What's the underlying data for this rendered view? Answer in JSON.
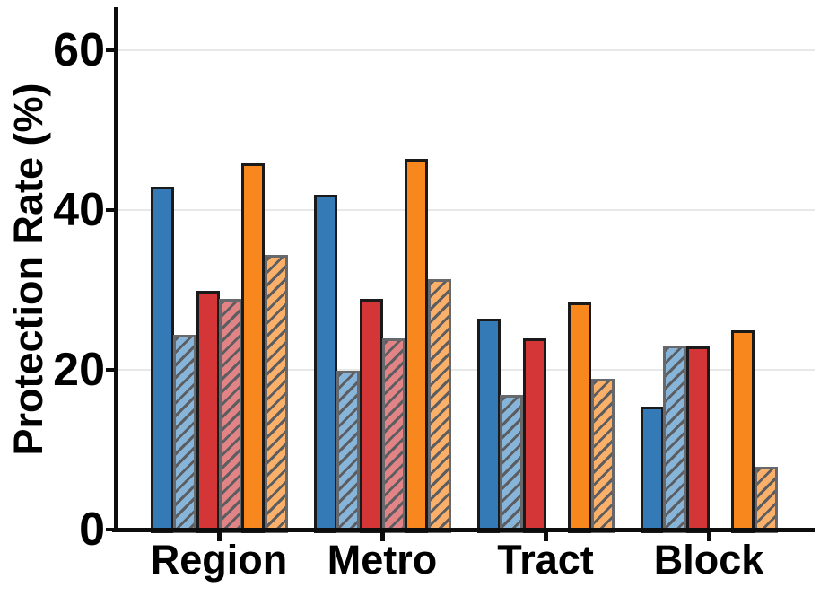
{
  "chart_data": {
    "type": "bar",
    "title": "",
    "xlabel": "",
    "ylabel": "Protection Rate (%)",
    "categories": [
      "Region",
      "Metro",
      "Tract",
      "Block"
    ],
    "yticks": [
      0,
      20,
      40,
      60
    ],
    "ylim": [
      0,
      65
    ],
    "grid": "horizontal",
    "legend": "none",
    "series": [
      {
        "name": "blue-solid",
        "fill": "#337ab7",
        "edge": "#1a1a1a",
        "hatch": false,
        "values": [
          43.0,
          42.0,
          26.5,
          15.5
        ]
      },
      {
        "name": "blue-hatched",
        "fill": "#87b4d9",
        "edge": "#67686b",
        "hatch": true,
        "values": [
          24.5,
          20.0,
          17.0,
          23.2
        ]
      },
      {
        "name": "red-solid",
        "fill": "#d43638",
        "edge": "#1a1a1a",
        "hatch": false,
        "values": [
          30.0,
          29.0,
          24.0,
          23.0
        ]
      },
      {
        "name": "red-hatched",
        "fill": "#e28486",
        "edge": "#67686b",
        "hatch": true,
        "values": [
          29.0,
          24.0,
          0,
          0
        ]
      },
      {
        "name": "orange-solid",
        "fill": "#f8871e",
        "edge": "#1a1a1a",
        "hatch": false,
        "values": [
          46.0,
          46.5,
          28.5,
          25.0
        ]
      },
      {
        "name": "orange-hatched",
        "fill": "#fbb069",
        "edge": "#67686b",
        "hatch": true,
        "values": [
          34.5,
          31.5,
          19.0,
          8.0
        ]
      }
    ],
    "hatch_line_color": "#5c5d60",
    "gridline_color": "#e8e8e8",
    "axis_color": "#0d0d0d"
  }
}
